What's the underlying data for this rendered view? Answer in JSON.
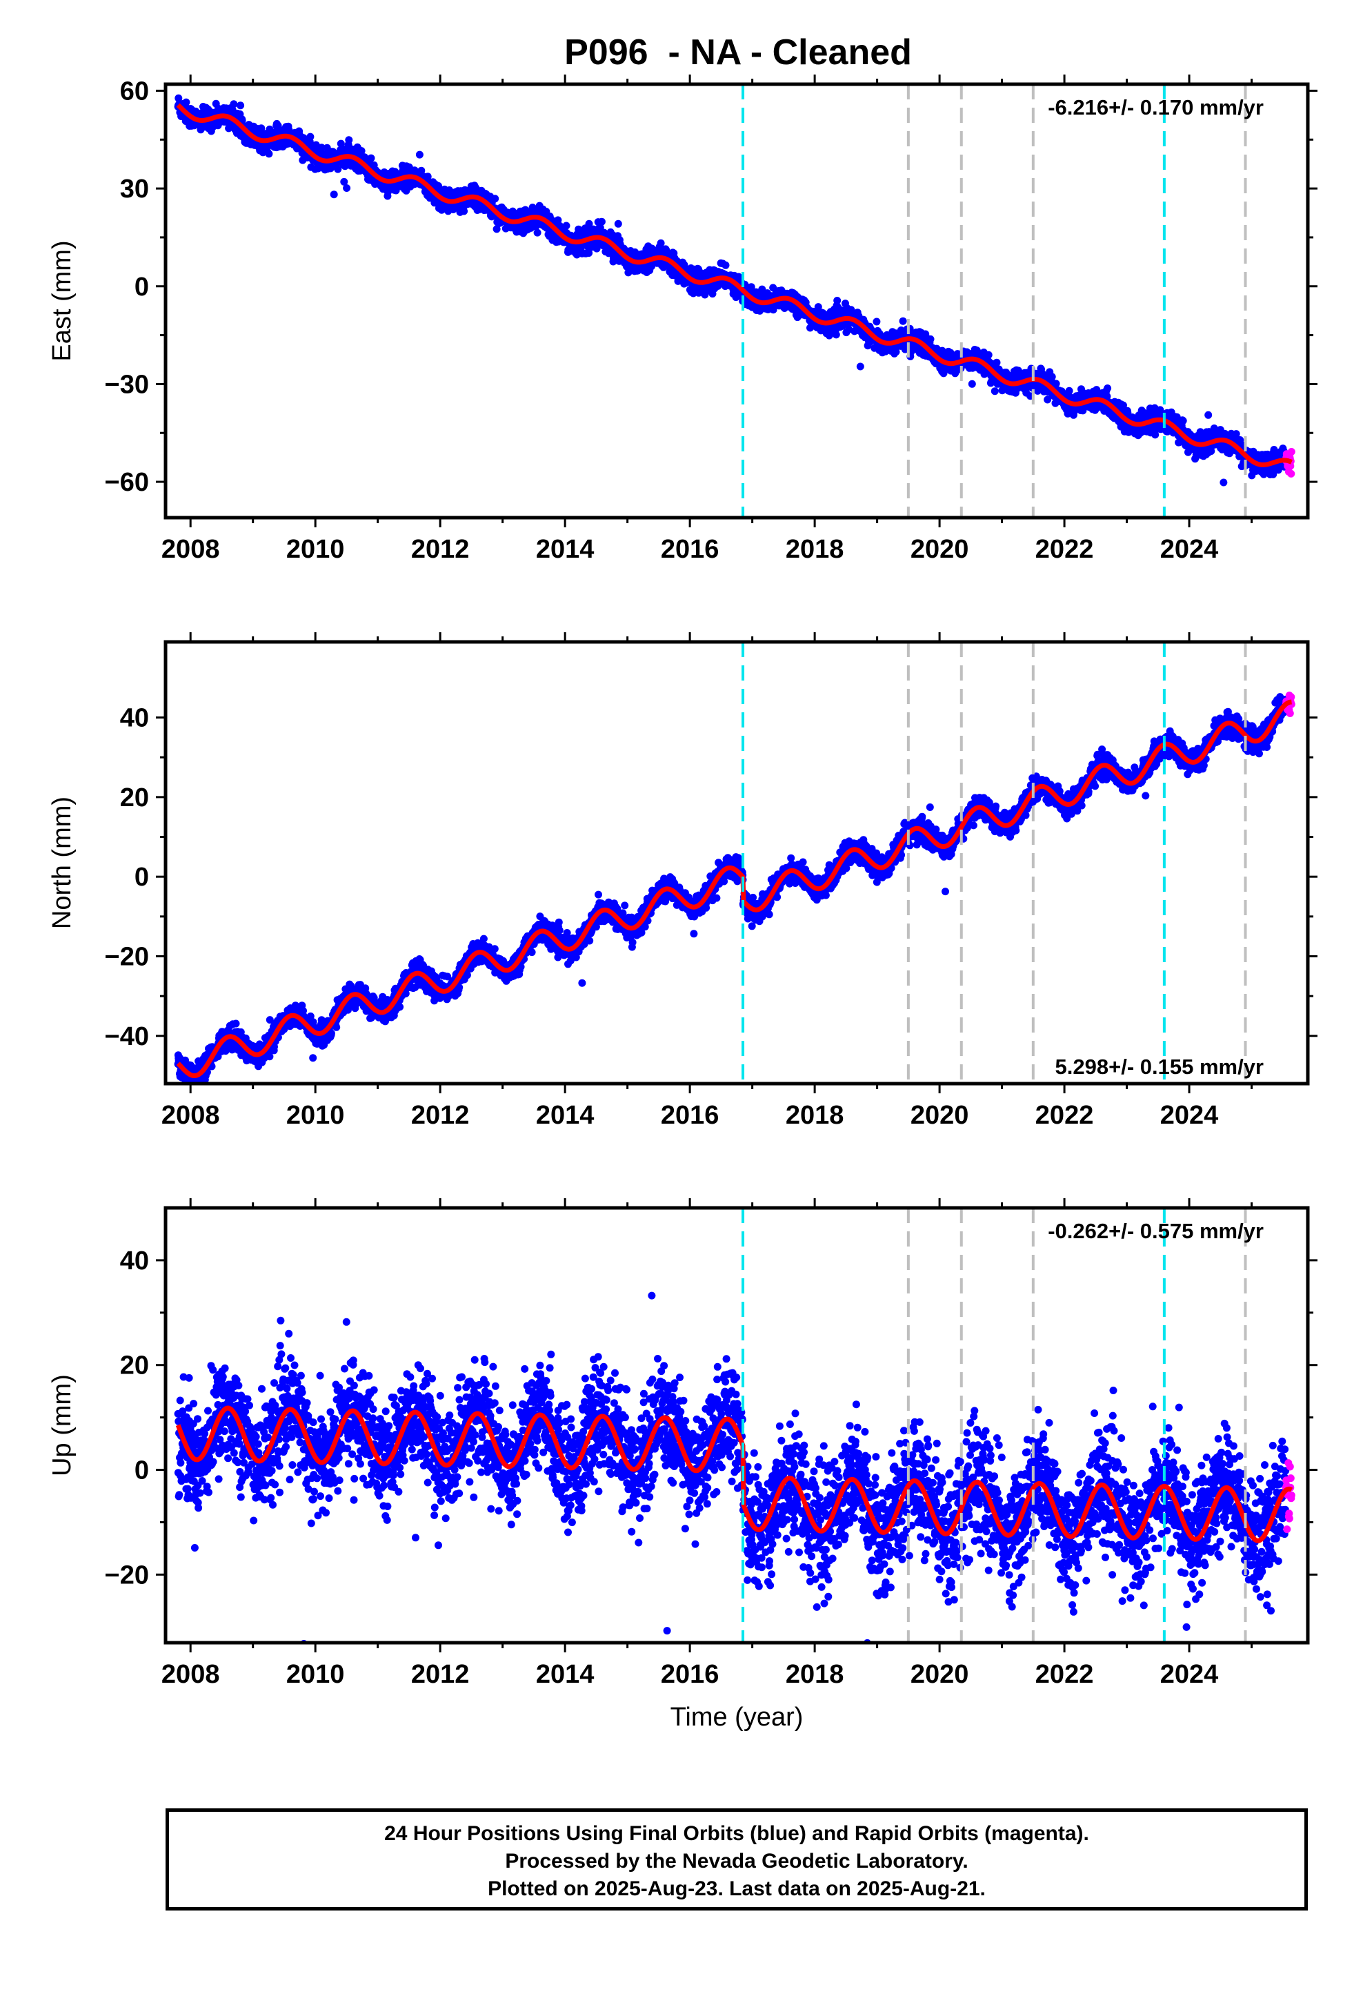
{
  "title": "P096  - NA - Cleaned",
  "xlabel": "Time (year)",
  "caption": [
    "24 Hour Positions Using Final Orbits (blue) and Rapid Orbits (magenta).",
    "Processed by the Nevada Geodetic Laboratory.",
    "Plotted on 2025-Aug-23. Last data on 2025-Aug-21."
  ],
  "colors": {
    "final": "#0000ff",
    "rapid": "#ff00ff",
    "model": "#ff0000",
    "cyan_marker": "#00e5ee",
    "gray_marker": "#bfbfbf"
  },
  "chart_data": [
    {
      "type": "scatter",
      "ylabel": "East (mm)",
      "xlim": [
        2007.6,
        2025.9
      ],
      "ylim": [
        -71,
        62
      ],
      "xticks": [
        "2008",
        "2010",
        "2012",
        "2014",
        "2016",
        "2018",
        "2020",
        "2022",
        "2024"
      ],
      "yticks": [
        "60",
        "30",
        "0",
        "−30",
        "−60"
      ],
      "yticks_values": [
        60,
        30,
        0,
        -30,
        -60
      ],
      "rate_label": "-6.216+/- 0.170 mm/yr",
      "rate_position": "top-right",
      "trend": {
        "start": [
          2007.8,
          55
        ],
        "rate": -6.216,
        "offset_2016_8": 0,
        "annual_amplitude": 2.0,
        "noise": 1.6
      }
    },
    {
      "type": "scatter",
      "ylabel": "North (mm)",
      "xlim": [
        2007.6,
        2025.9
      ],
      "ylim": [
        -52,
        59
      ],
      "xticks": [
        "2008",
        "2010",
        "2012",
        "2014",
        "2016",
        "2018",
        "2020",
        "2022",
        "2024"
      ],
      "yticks": [
        "40",
        "20",
        "0",
        "−20",
        "−40"
      ],
      "yticks_values": [
        40,
        20,
        0,
        -20,
        -40
      ],
      "rate_label": "5.298+/- 0.155 mm/yr",
      "rate_position": "bottom-right",
      "trend": {
        "start": [
          2007.8,
          -48
        ],
        "rate": 5.298,
        "offset_2016_8": -6,
        "annual_amplitude": 3.5,
        "noise": 1.4
      }
    },
    {
      "type": "scatter",
      "ylabel": "Up (mm)",
      "xlim": [
        2007.6,
        2025.9
      ],
      "ylim": [
        -33,
        50
      ],
      "xticks": [
        "2008",
        "2010",
        "2012",
        "2014",
        "2016",
        "2018",
        "2020",
        "2022",
        "2024"
      ],
      "yticks": [
        "40",
        "20",
        "0",
        "−20"
      ],
      "yticks_values": [
        40,
        20,
        0,
        -20
      ],
      "rate_label": "-0.262+/- 0.575 mm/yr",
      "rate_position": "top-right",
      "trend": {
        "start": [
          2007.8,
          7
        ],
        "rate": -0.262,
        "offset_2016_8": -11,
        "annual_amplitude": 5.0,
        "noise": 5.0
      }
    }
  ],
  "event_lines": [
    {
      "year": 2016.85,
      "kind": "cyan"
    },
    {
      "year": 2019.5,
      "kind": "gray"
    },
    {
      "year": 2020.35,
      "kind": "gray"
    },
    {
      "year": 2021.5,
      "kind": "gray"
    },
    {
      "year": 2023.6,
      "kind": "cyan"
    },
    {
      "year": 2024.9,
      "kind": "gray"
    }
  ],
  "data_range": {
    "start": 2007.8,
    "end": 2025.64,
    "rapid_start": 2025.55
  }
}
